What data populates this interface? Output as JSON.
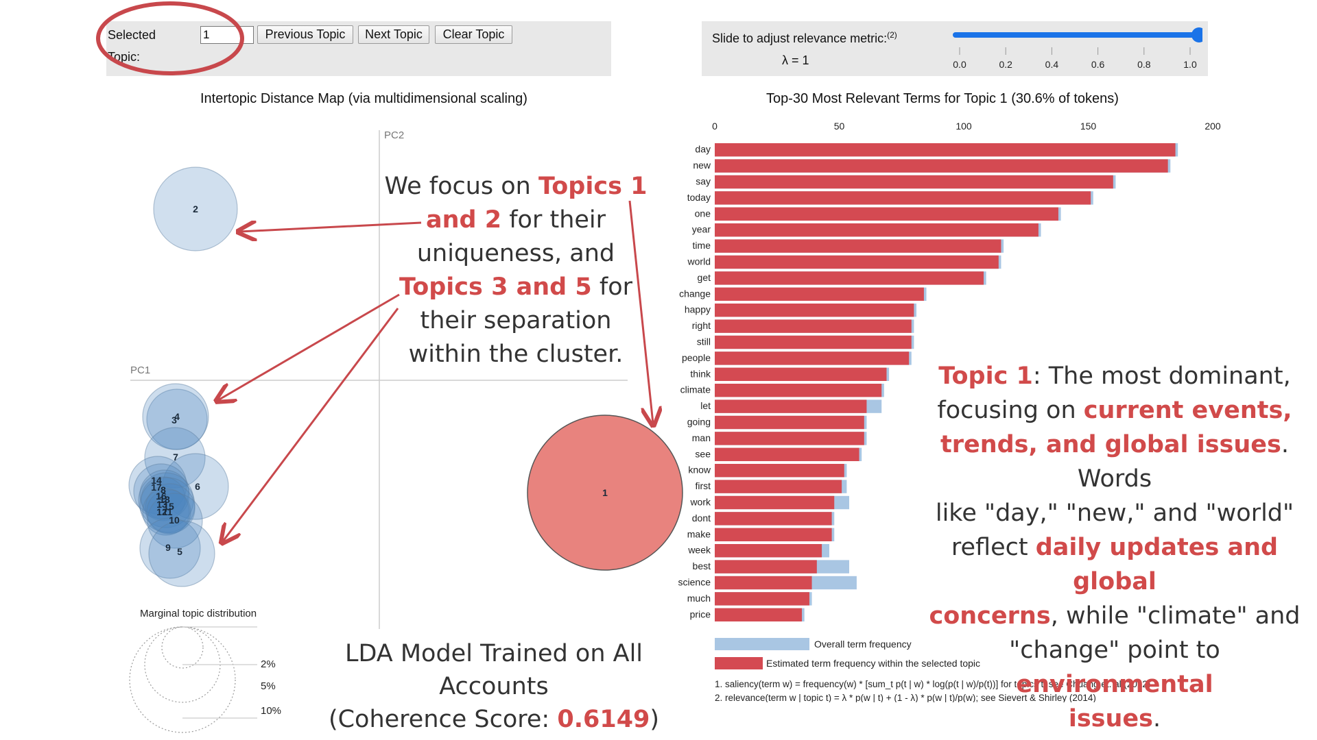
{
  "controls": {
    "selected_topic_label": "Selected Topic:",
    "selected_topic_value": "1",
    "previous_label": "Previous Topic",
    "next_label": "Next Topic",
    "clear_label": "Clear Topic"
  },
  "relevance": {
    "label": "Slide to adjust relevance metric:",
    "footnote_mark": "(2)",
    "lambda_text": "λ = 1",
    "lambda_value": 1.0,
    "ticks": [
      "0.0",
      "0.2",
      "0.4",
      "0.6",
      "0.8",
      "1.0"
    ],
    "color": "#1a73e8"
  },
  "left_panel": {
    "title": "Intertopic Distance Map (via multidimensional scaling)",
    "pc1_label": "PC1",
    "pc2_label": "PC2",
    "marginal_title": "Marginal topic distribution",
    "marginal_ticks": [
      "2%",
      "5%",
      "10%"
    ],
    "topics": [
      {
        "id": "1",
        "selected": true
      },
      {
        "id": "2"
      },
      {
        "id": "3"
      },
      {
        "id": "4"
      },
      {
        "id": "5"
      },
      {
        "id": "6"
      },
      {
        "id": "7"
      },
      {
        "id": "8"
      },
      {
        "id": "9"
      },
      {
        "id": "10"
      },
      {
        "id": "11"
      },
      {
        "id": "12"
      },
      {
        "id": "13"
      },
      {
        "id": "14"
      },
      {
        "id": "15"
      },
      {
        "id": "16"
      },
      {
        "id": "17"
      },
      {
        "id": "18"
      }
    ],
    "selected_color": "#e8837e",
    "topic_color": "#a9c4e0"
  },
  "chart_data": {
    "type": "bar",
    "title": "Top-30 Most Relevant Terms for Topic 1 (30.6% of tokens)",
    "xlim": [
      0,
      200
    ],
    "xticks": [
      "0",
      "50",
      "100",
      "150",
      "200"
    ],
    "categories": [
      "day",
      "new",
      "say",
      "today",
      "one",
      "year",
      "time",
      "world",
      "get",
      "change",
      "happy",
      "right",
      "still",
      "people",
      "think",
      "climate",
      "let",
      "going",
      "man",
      "see",
      "know",
      "first",
      "work",
      "dont",
      "make",
      "week",
      "best",
      "science",
      "much",
      "price"
    ],
    "series": [
      {
        "name": "Overall term frequency",
        "color": "#a9c6e3",
        "values": [
          186,
          183,
          161,
          152,
          139,
          131,
          116,
          115,
          109,
          85,
          81,
          80,
          80,
          79,
          70,
          68,
          67,
          61,
          61,
          59,
          53,
          53,
          54,
          48,
          48,
          46,
          54,
          57,
          39,
          36
        ]
      },
      {
        "name": "Estimated term frequency within the selected topic",
        "color": "#d44a52",
        "values": [
          185,
          182,
          160,
          151,
          138,
          130,
          115,
          114,
          108,
          84,
          80,
          79,
          79,
          78,
          69,
          67,
          61,
          60,
          60,
          58,
          52,
          51,
          48,
          47,
          47,
          43,
          41,
          39,
          38,
          35
        ]
      }
    ],
    "legend_placement": "bottom",
    "footnotes": [
      "1. saliency(term w) = frequency(w) * [sum_t p(t | w) * log(p(t | w)/p(t))] for topics t; see Chuang et. al (2012)",
      "2. relevance(term w | topic t) = λ * p(w | t) + (1 - λ) * p(w | t)/p(w); see Sievert & Shirley (2014)"
    ]
  },
  "annotations": {
    "focus": {
      "l1a": "We focus on ",
      "l1b": "Topics 1",
      "l2a": "and 2",
      "l2b": " for their",
      "l3": "uniqueness, and",
      "l4a": "Topics 3 and 5",
      "l4b": " for",
      "l5": "their separation",
      "l6": "within the cluster."
    },
    "topic1": {
      "l1a": "Topic 1",
      "l1b": ": The most dominant,",
      "l2a": "focusing on ",
      "l2b": "current events,",
      "l3a": "trends, and global issues",
      "l3b": ". Words",
      "l4": "like \"day,\" \"new,\" and \"world\"",
      "l5a": "reflect ",
      "l5b": "daily updates and global",
      "l6a": "concerns",
      "l6b": ", while \"climate\" and",
      "l7a": "\"change\" point to ",
      "l7b": "environmental",
      "l8a": "issues",
      "l8b": "."
    },
    "model": {
      "l1": "LDA Model Trained on All Accounts",
      "l2a": "(Coherence Score: ",
      "l2b": "0.6149",
      "l2c": ")"
    },
    "accent_color": "#d14a4a",
    "highlight_circle_color": "#c8484c"
  }
}
